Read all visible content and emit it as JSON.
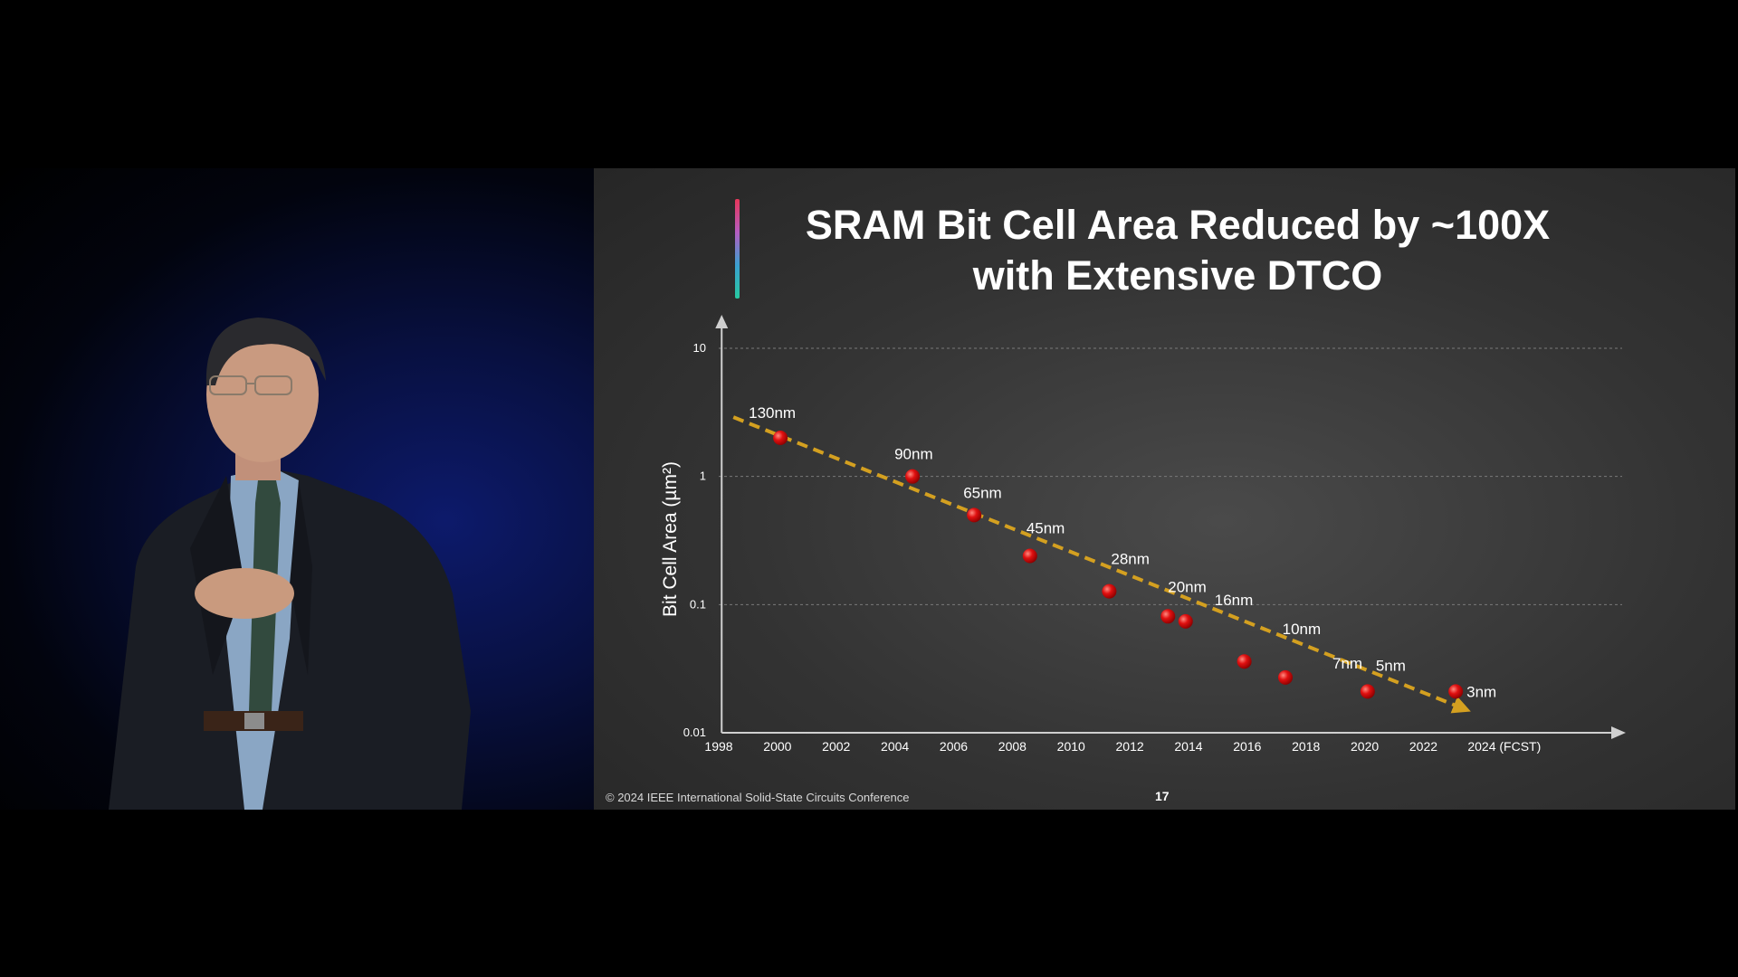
{
  "slide": {
    "title_line1": "SRAM Bit Cell Area Reduced by ~100X",
    "title_line2": "with Extensive DTCO",
    "footer": "© 2024 IEEE International Solid-State Circuits Conference",
    "page_number": "17"
  },
  "colors": {
    "point": "#e01010",
    "trend": "#d4a020",
    "axis": "#cfcfcf"
  },
  "chart_data": {
    "type": "scatter",
    "ylabel": "Bit Cell Area (µm²)",
    "yscale": "log",
    "ylim": [
      0.01,
      10
    ],
    "xlim": [
      1998,
      2025
    ],
    "grid": "horizontal dashed",
    "x_ticks": [
      "1998",
      "2000",
      "2002",
      "2004",
      "2006",
      "2008",
      "2010",
      "2012",
      "2014",
      "2016",
      "2018",
      "2020",
      "2022",
      "2024 (FCST)"
    ],
    "y_ticks": [
      "10",
      "1",
      "0.1",
      "0.01"
    ],
    "points": [
      {
        "label": "130nm",
        "x": 2000.1,
        "y": 2.0
      },
      {
        "label": "90nm",
        "x": 2004.6,
        "y": 1.0
      },
      {
        "label": "65nm",
        "x": 2006.7,
        "y": 0.5
      },
      {
        "label": "45nm",
        "x": 2008.6,
        "y": 0.24
      },
      {
        "label": "28nm",
        "x": 2011.3,
        "y": 0.127
      },
      {
        "label": "20nm",
        "x": 2013.3,
        "y": 0.081
      },
      {
        "label": "16nm",
        "x": 2013.9,
        "y": 0.074
      },
      {
        "label": "10nm",
        "x": 2015.9,
        "y": 0.036
      },
      {
        "label": "7nm",
        "x": 2017.3,
        "y": 0.027
      },
      {
        "label": "5nm",
        "x": 2020.1,
        "y": 0.021
      },
      {
        "label": "3nm",
        "x": 2023.1,
        "y": 0.021
      }
    ],
    "trend_line": {
      "x": [
        1998.5,
        2023.5
      ],
      "y": [
        2.9,
        0.015
      ]
    }
  }
}
